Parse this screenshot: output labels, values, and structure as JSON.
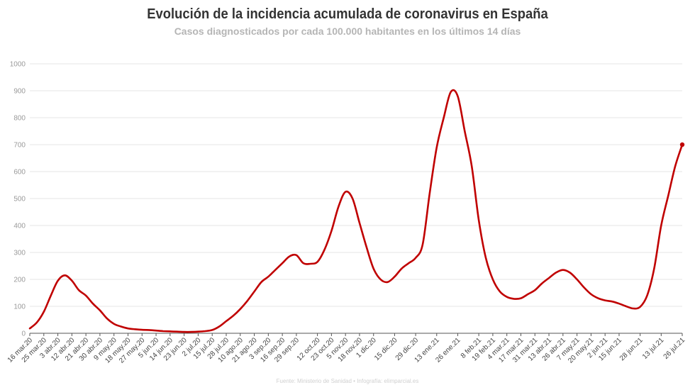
{
  "chart_data": {
    "type": "line",
    "title": "Evolución de la incidencia acumulada de coronavirus en España",
    "subtitle": "Casos diagnosticados por cada 100.000 habitantes en los últimos 14 días",
    "source": "Fuente: Ministerio de Sanidad • Infografía: elimparcial.es",
    "xlabel": "",
    "ylabel": "",
    "ylim": [
      0,
      1000
    ],
    "yticks": [
      "0",
      "100",
      "200",
      "300",
      "400",
      "500",
      "600",
      "700",
      "800",
      "900",
      "1000"
    ],
    "grid": true,
    "legend": "none",
    "line_color": "#c00000",
    "x_tick_labels": [
      "16 mar.20",
      "25 mar.20",
      "3 abr.20",
      "12 abr.20",
      "21 abr.20",
      "30 abr.20",
      "9 may.20",
      "18 may.20",
      "27 may.20",
      "5 jun.20",
      "14 jun.20",
      "23 jun.20",
      "2 jul.20",
      "15 jul.20",
      "28 jul.20",
      "10 ago.20",
      "21 ago.20",
      "3 sep.20",
      "16 sep.20",
      "29 sep.20",
      "12 oct.20",
      "23 oct.20",
      "5 nov.20",
      "18 nov.20",
      "1 dic.20",
      "15 dic.20",
      "29 dic.20",
      "13 ene.21",
      "26 ene.21",
      "8 feb.21",
      "19 feb.21",
      "4 mar.21",
      "17 mar.21",
      "31 mar.21",
      "13 abr.21",
      "26 abr.21",
      "7 may.21",
      "20 may.21",
      "2 jun.21",
      "15 jun.21",
      "28 jun.21",
      "13 jul.21",
      "26 jul.21"
    ],
    "x": [
      "16 mar.20",
      "20 mar.20",
      "25 mar.20",
      "29 mar.20",
      "3 abr.20",
      "7 abr.20",
      "12 abr.20",
      "16 abr.20",
      "21 abr.20",
      "25 abr.20",
      "30 abr.20",
      "4 may.20",
      "9 may.20",
      "13 may.20",
      "18 may.20",
      "22 may.20",
      "27 may.20",
      "1 jun.20",
      "5 jun.20",
      "10 jun.20",
      "14 jun.20",
      "19 jun.20",
      "23 jun.20",
      "28 jun.20",
      "2 jul.20",
      "8 jul.20",
      "15 jul.20",
      "21 jul.20",
      "28 jul.20",
      "3 ago.20",
      "10 ago.20",
      "15 ago.20",
      "21 ago.20",
      "27 ago.20",
      "3 sep.20",
      "9 sep.20",
      "16 sep.20",
      "22 sep.20",
      "29 sep.20",
      "3 oct.20",
      "5 oct.20",
      "12 oct.20",
      "17 oct.20",
      "23 oct.20",
      "29 oct.20",
      "5 nov.20",
      "11 nov.20",
      "18 nov.20",
      "24 nov.20",
      "1 dic.20",
      "5 dic.20",
      "8 dic.20",
      "15 dic.20",
      "22 dic.20",
      "26 dic.20",
      "29 dic.20",
      "3 ene.21",
      "8 ene.21",
      "13 ene.21",
      "17 ene.21",
      "22 ene.21",
      "26 ene.21",
      "28 ene.21",
      "2 feb.21",
      "8 feb.21",
      "13 feb.21",
      "19 feb.21",
      "25 feb.21",
      "4 mar.21",
      "10 mar.21",
      "17 mar.21",
      "24 mar.21",
      "31 mar.21",
      "6 abr.21",
      "13 abr.21",
      "19 abr.21",
      "26 abr.21",
      "2 may.21",
      "7 may.21",
      "13 may.21",
      "20 may.21",
      "27 may.21",
      "2 jun.21",
      "9 jun.21",
      "15 jun.21",
      "20 jun.21",
      "25 jun.21",
      "28 jun.21",
      "5 jul.21",
      "10 jul.21",
      "13 jul.21",
      "18 jul.21",
      "22 jul.21",
      "26 jul.21"
    ],
    "values": [
      18,
      40,
      80,
      140,
      195,
      215,
      195,
      160,
      140,
      110,
      85,
      55,
      35,
      25,
      18,
      15,
      13,
      12,
      10,
      8,
      7,
      6,
      5,
      5,
      6,
      8,
      12,
      25,
      45,
      65,
      90,
      120,
      155,
      190,
      210,
      235,
      260,
      285,
      290,
      260,
      258,
      265,
      310,
      380,
      470,
      525,
      500,
      410,
      320,
      240,
      200,
      190,
      210,
      240,
      260,
      280,
      330,
      520,
      690,
      800,
      895,
      880,
      750,
      620,
      420,
      280,
      200,
      155,
      135,
      128,
      130,
      145,
      160,
      185,
      205,
      225,
      235,
      225,
      200,
      170,
      145,
      130,
      122,
      118,
      110,
      100,
      92,
      98,
      140,
      240,
      400,
      510,
      620,
      700
    ]
  }
}
